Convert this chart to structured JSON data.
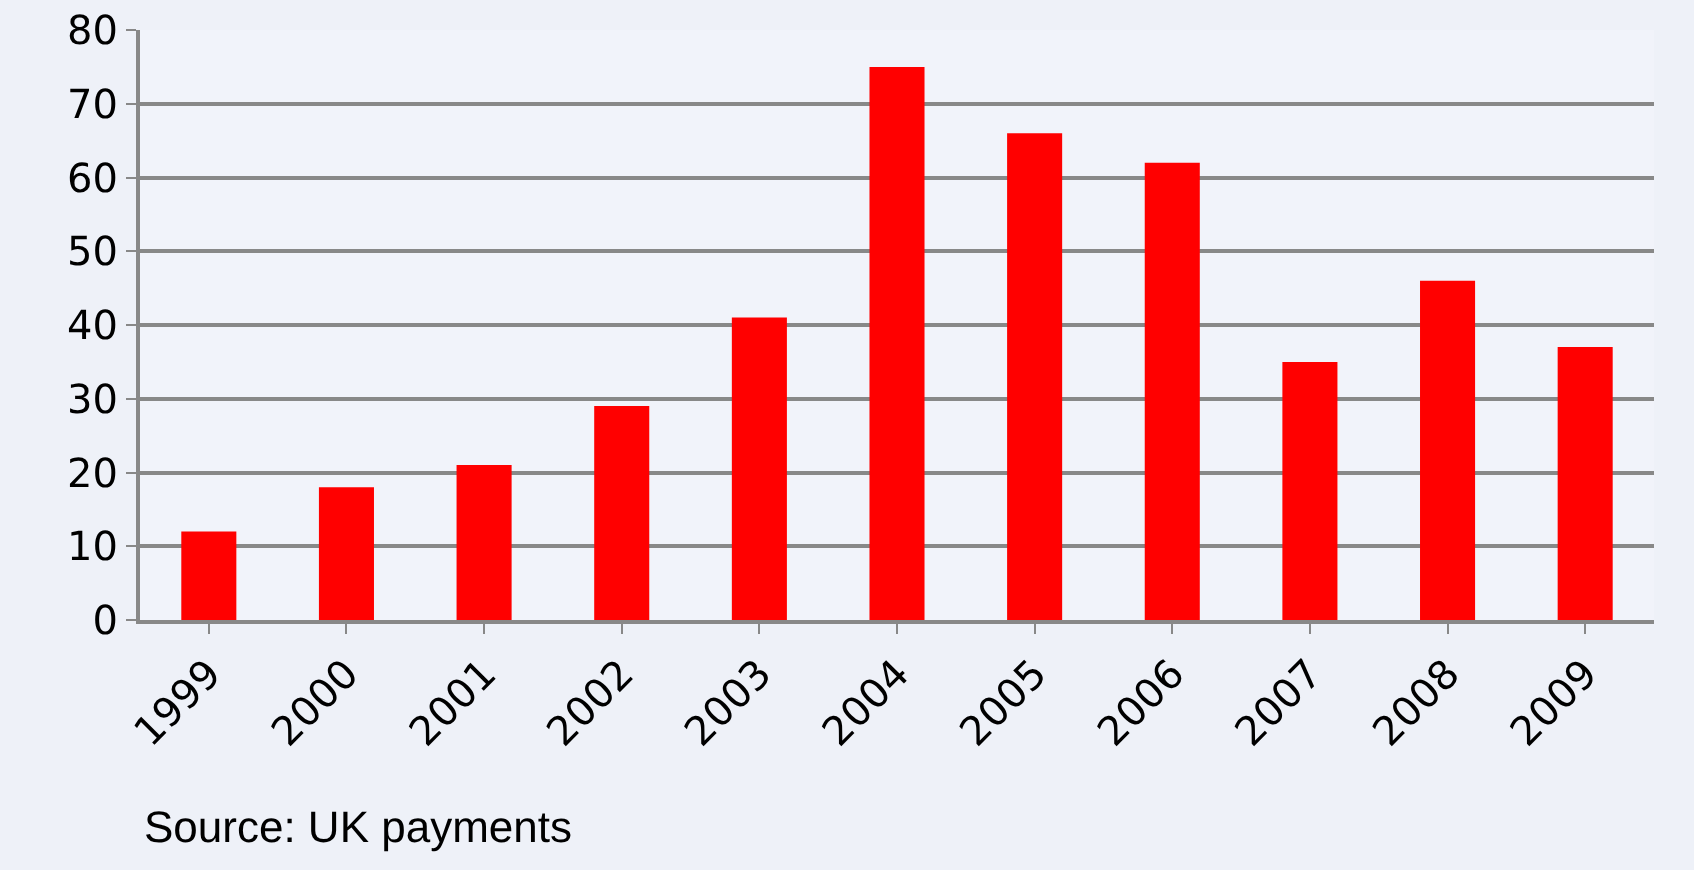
{
  "chart_data": {
    "type": "bar",
    "categories": [
      "1999",
      "2000",
      "2001",
      "2002",
      "2003",
      "2004",
      "2005",
      "2006",
      "2007",
      "2008",
      "2009"
    ],
    "values": [
      12,
      18,
      21,
      29,
      41,
      75,
      66,
      62,
      35,
      46,
      37
    ],
    "color": "#ff0000",
    "ylim": [
      0,
      80
    ],
    "yticks": [
      0,
      10,
      20,
      30,
      40,
      50,
      60,
      70,
      80
    ],
    "grid": "y",
    "annotations": [
      "Source: UK payments"
    ]
  }
}
